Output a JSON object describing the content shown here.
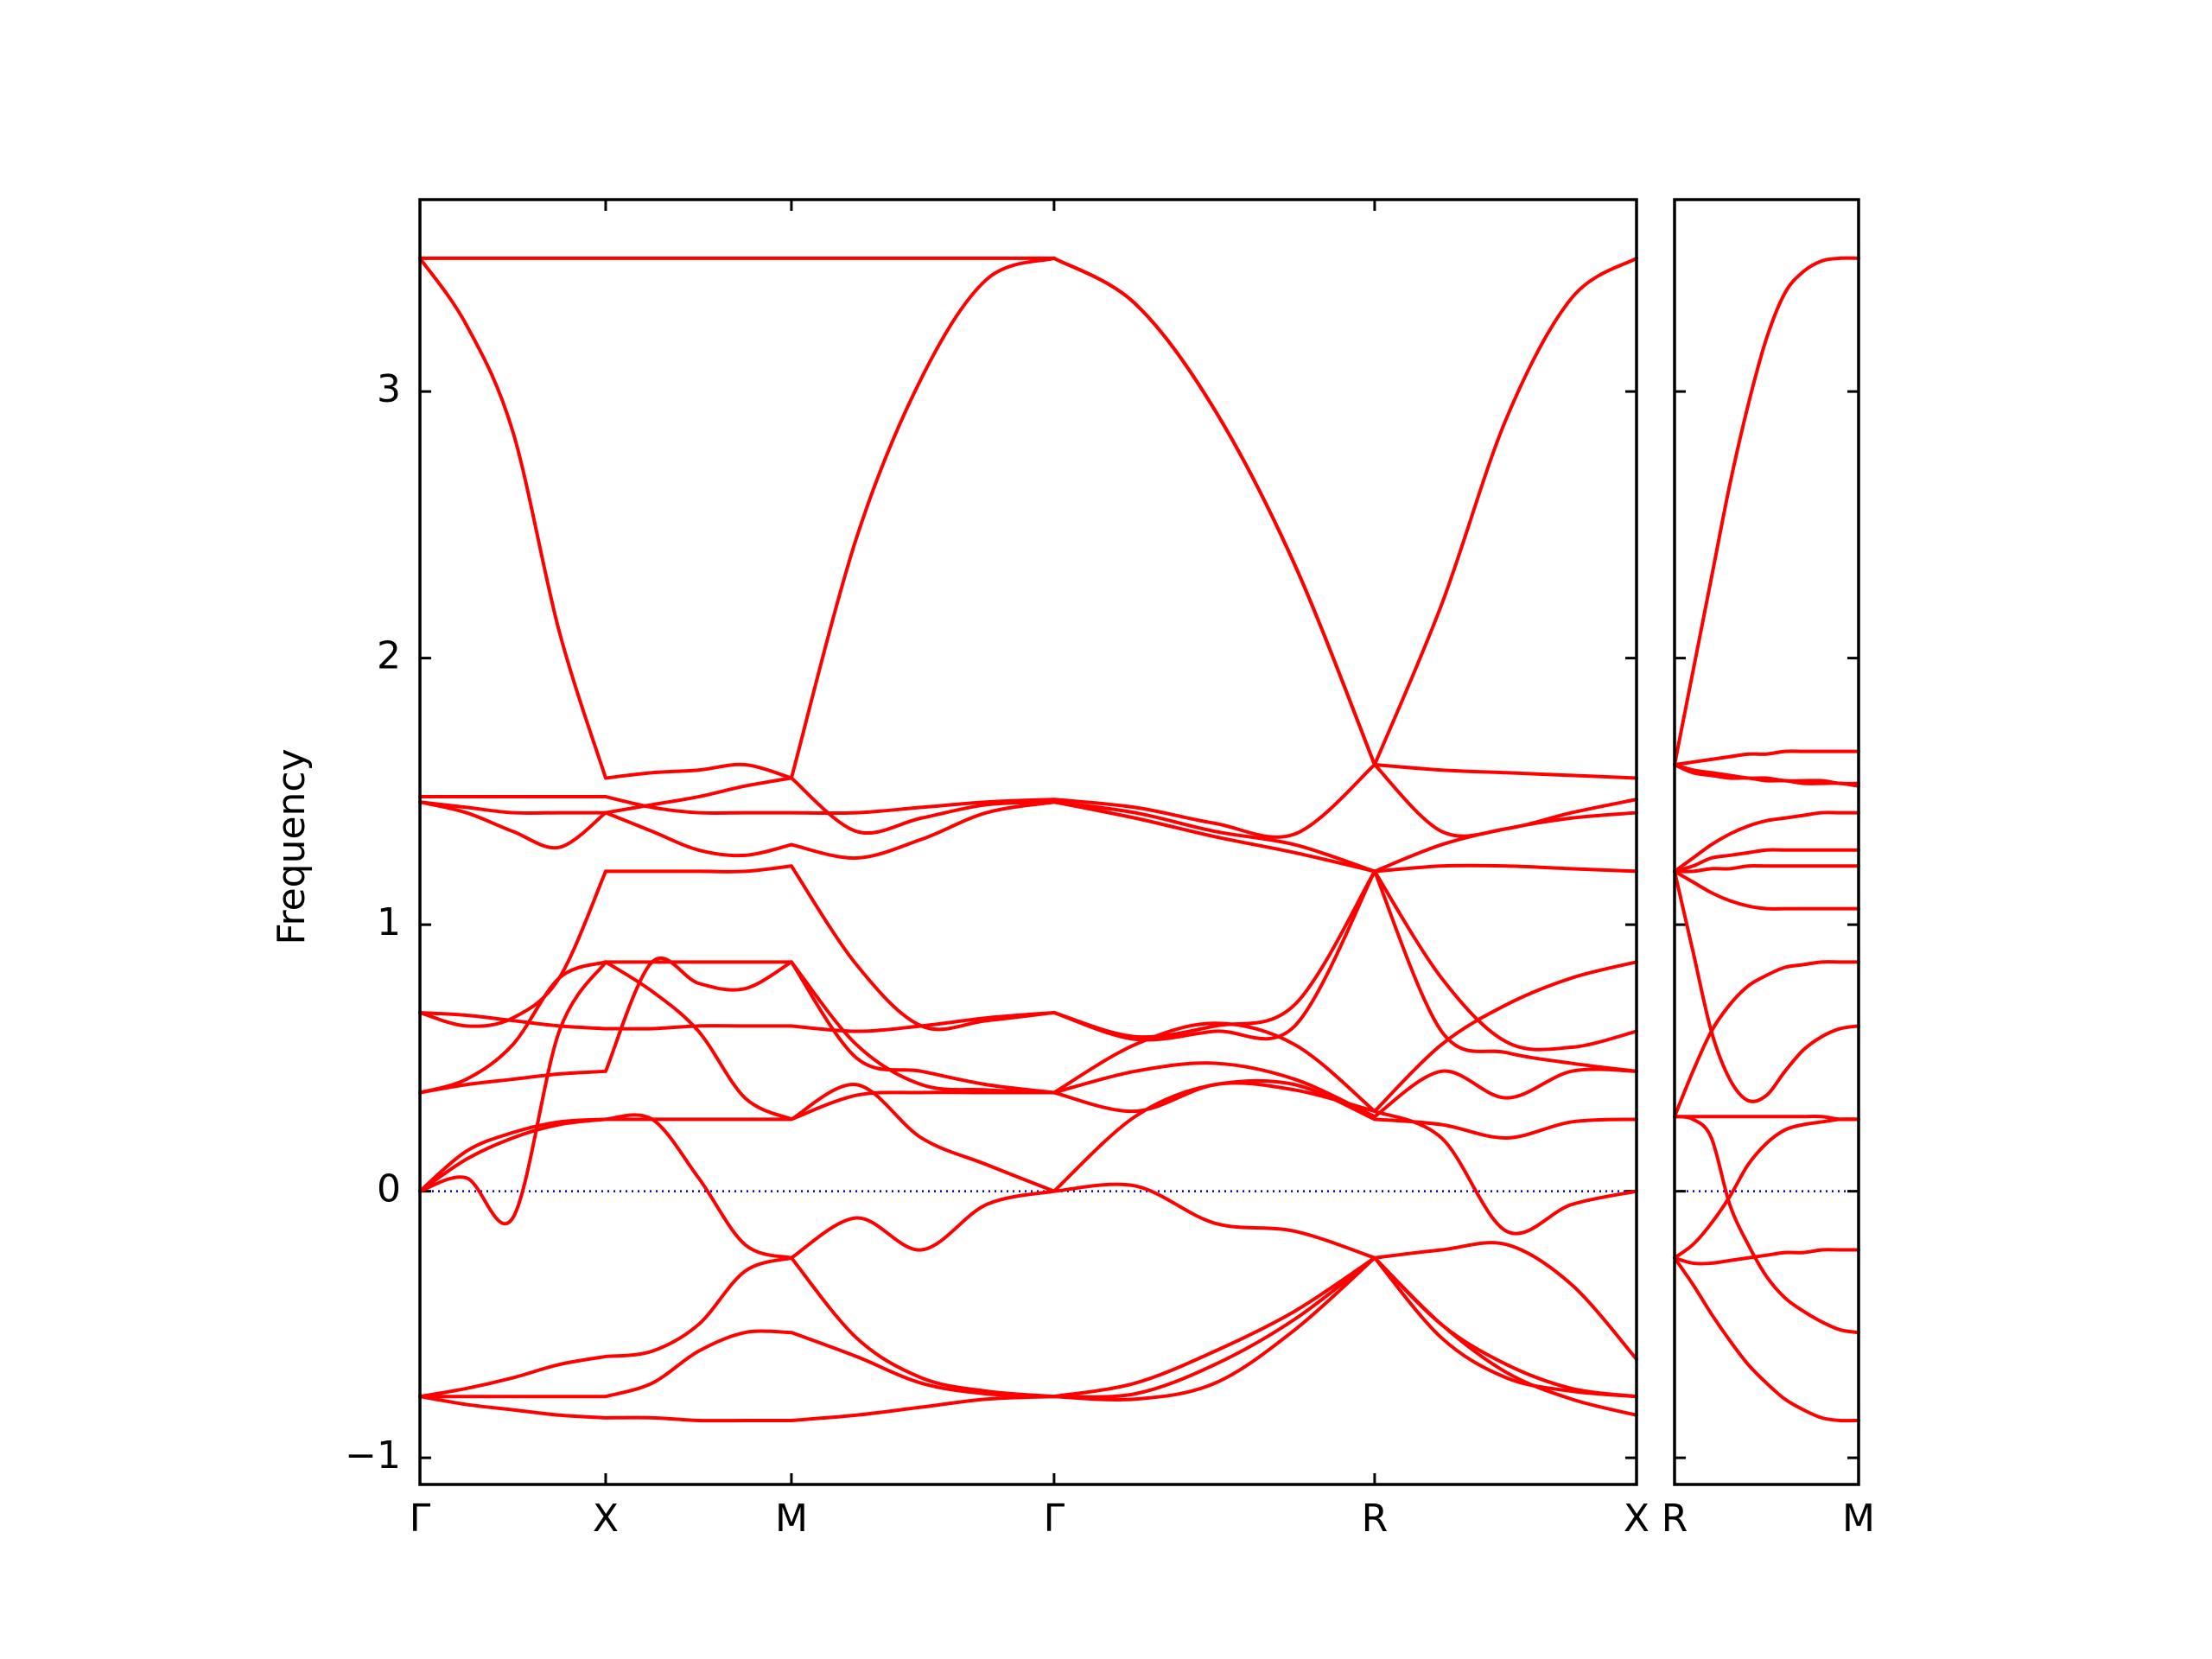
{
  "chart_data": [
    {
      "type": "line",
      "ylabel": "Frequency",
      "color": "#ff0000",
      "xlim": [
        0,
        6.55
      ],
      "ylim": [
        -1.1,
        3.72
      ],
      "xticks": [
        {
          "value": 0,
          "label": "Γ"
        },
        {
          "value": 1,
          "label": "X"
        },
        {
          "value": 2,
          "label": "M"
        },
        {
          "value": 3.414,
          "label": "Γ"
        },
        {
          "value": 5.14,
          "label": "R"
        },
        {
          "value": 6.55,
          "label": "X"
        }
      ],
      "yticks": [
        {
          "value": -1,
          "label": "−1"
        },
        0,
        1,
        2,
        3
      ],
      "hline": 0,
      "hline_color": "#0000cc",
      "x": [
        0,
        0.25,
        0.5,
        0.75,
        1,
        1.25,
        1.5,
        1.75,
        2,
        2.35,
        2.7,
        3.05,
        3.414,
        3.85,
        4.28,
        4.71,
        5.14,
        5.5,
        5.85,
        6.2,
        6.55
      ],
      "series": [
        {
          "values": [
            3.5,
            3.5,
            3.5,
            3.5,
            3.5,
            3.5,
            3.5,
            3.5,
            3.5,
            3.5,
            3.5,
            3.5,
            3.5,
            3.33,
            2.93,
            2.35,
            1.6,
            2.2,
            2.9,
            3.35,
            3.5
          ]
        },
        {
          "values": [
            3.5,
            3.25,
            2.85,
            2.1,
            1.55,
            1.57,
            1.58,
            1.6,
            1.55,
            2.45,
            3.05,
            3.42,
            3.5,
            3.33,
            2.93,
            2.35,
            1.6,
            1.35,
            1.36,
            1.42,
            1.47
          ]
        },
        {
          "values": [
            1.48,
            1.48,
            1.48,
            1.48,
            1.48,
            1.44,
            1.42,
            1.42,
            1.42,
            1.42,
            1.44,
            1.46,
            1.47,
            1.44,
            1.38,
            1.34,
            1.6,
            1.58,
            1.57,
            1.56,
            1.55
          ]
        },
        {
          "values": [
            1.46,
            1.44,
            1.42,
            1.42,
            1.42,
            1.45,
            1.48,
            1.52,
            1.55,
            1.35,
            1.4,
            1.45,
            1.46,
            1.42,
            1.35,
            1.3,
            1.2,
            1.3,
            1.36,
            1.4,
            1.42
          ]
        },
        {
          "values": [
            1.46,
            1.42,
            1.35,
            1.29,
            1.42,
            1.35,
            1.28,
            1.26,
            1.3,
            1.25,
            1.32,
            1.42,
            1.46,
            1.4,
            1.33,
            1.27,
            1.2,
            1.22,
            1.22,
            1.21,
            1.2
          ]
        },
        {
          "values": [
            0.67,
            0.62,
            0.65,
            0.8,
            1.2,
            1.2,
            1.2,
            1.2,
            1.22,
            0.85,
            0.62,
            0.64,
            0.67,
            0.58,
            0.62,
            0.7,
            1.2,
            0.8,
            0.56,
            0.54,
            0.6
          ]
        },
        {
          "values": [
            0.67,
            0.66,
            0.64,
            0.62,
            0.61,
            0.61,
            0.62,
            0.62,
            0.62,
            0.6,
            0.62,
            0.65,
            0.67,
            0.57,
            0.6,
            0.62,
            1.2,
            0.6,
            0.52,
            0.48,
            0.45
          ]
        },
        {
          "values": [
            0.37,
            0.42,
            0.55,
            0.8,
            0.86,
            0.86,
            0.86,
            0.86,
            0.86,
            0.55,
            0.4,
            0.38,
            0.37,
            0.55,
            0.63,
            0.55,
            0.3,
            0.55,
            0.7,
            0.8,
            0.86
          ]
        },
        {
          "values": [
            0.37,
            0.4,
            0.42,
            0.44,
            0.45,
            0.86,
            0.78,
            0.76,
            0.86,
            0.5,
            0.45,
            0.4,
            0.37,
            0.45,
            0.48,
            0.42,
            0.28,
            0.45,
            0.35,
            0.45,
            0.45
          ]
        },
        {
          "values": [
            0,
            0.15,
            0.22,
            0.26,
            0.27,
            0.27,
            0.27,
            0.27,
            0.27,
            0.36,
            0.37,
            0.37,
            0.37,
            0.3,
            0.4,
            0.4,
            0.27,
            0.25,
            0.2,
            0.26,
            0.27
          ]
        },
        {
          "values": [
            0,
            0.05,
            -0.1,
            0.6,
            0.86,
            0.75,
            0.6,
            0.35,
            0.27,
            0.4,
            0.2,
            0.1,
            0,
            0.28,
            0.4,
            0.38,
            0.3,
            0.2,
            -0.15,
            -0.05,
            0
          ]
        },
        {
          "values": [
            0,
            0.12,
            0.2,
            0.25,
            0.27,
            0.27,
            0.05,
            -0.2,
            -0.25,
            -0.1,
            -0.22,
            -0.05,
            0,
            0.02,
            -0.12,
            -0.15,
            -0.25,
            -0.22,
            -0.2,
            -0.35,
            -0.63
          ]
        },
        {
          "values": [
            -0.77,
            -0.74,
            -0.7,
            -0.65,
            -0.62,
            -0.6,
            -0.5,
            -0.3,
            -0.25,
            -0.55,
            -0.7,
            -0.75,
            -0.77,
            -0.72,
            -0.6,
            -0.45,
            -0.25,
            -0.5,
            -0.65,
            -0.74,
            -0.77
          ]
        },
        {
          "values": [
            -0.77,
            -0.77,
            -0.77,
            -0.77,
            -0.77,
            -0.72,
            -0.6,
            -0.53,
            -0.53,
            -0.62,
            -0.72,
            -0.76,
            -0.77,
            -0.76,
            -0.65,
            -0.48,
            -0.25,
            -0.55,
            -0.7,
            -0.75,
            -0.77
          ]
        },
        {
          "values": [
            -0.77,
            -0.8,
            -0.82,
            -0.84,
            -0.85,
            -0.85,
            -0.86,
            -0.86,
            -0.86,
            -0.84,
            -0.81,
            -0.78,
            -0.77,
            -0.78,
            -0.72,
            -0.52,
            -0.25,
            -0.5,
            -0.68,
            -0.78,
            -0.84
          ]
        }
      ]
    },
    {
      "type": "line",
      "color": "#ff0000",
      "sharey": true,
      "xlim": [
        0,
        1
      ],
      "ylim": [
        -1.1,
        3.72
      ],
      "xticks": [
        {
          "value": 0,
          "label": "R"
        },
        {
          "value": 1,
          "label": "M"
        }
      ],
      "hline": 0,
      "hline_color": "#0000cc",
      "x": [
        0,
        0.1,
        0.2,
        0.3,
        0.4,
        0.5,
        0.6,
        0.7,
        0.8,
        0.9,
        1
      ],
      "series": [
        {
          "values": [
            1.6,
            1.95,
            2.3,
            2.65,
            2.95,
            3.2,
            3.37,
            3.45,
            3.49,
            3.5,
            3.5
          ]
        },
        {
          "values": [
            1.6,
            1.61,
            1.62,
            1.63,
            1.64,
            1.64,
            1.65,
            1.65,
            1.65,
            1.65,
            1.65
          ]
        },
        {
          "values": [
            1.6,
            1.58,
            1.57,
            1.56,
            1.55,
            1.55,
            1.54,
            1.54,
            1.54,
            1.53,
            1.53
          ]
        },
        {
          "values": [
            1.6,
            1.57,
            1.56,
            1.55,
            1.55,
            1.54,
            1.54,
            1.53,
            1.53,
            1.53,
            1.52
          ]
        },
        {
          "values": [
            1.2,
            1.25,
            1.3,
            1.34,
            1.37,
            1.39,
            1.4,
            1.41,
            1.42,
            1.42,
            1.42
          ]
        },
        {
          "values": [
            1.2,
            1.22,
            1.25,
            1.26,
            1.27,
            1.28,
            1.28,
            1.28,
            1.28,
            1.28,
            1.28
          ]
        },
        {
          "values": [
            1.2,
            1.2,
            1.21,
            1.21,
            1.22,
            1.22,
            1.22,
            1.22,
            1.22,
            1.22,
            1.22
          ]
        },
        {
          "values": [
            1.2,
            1.16,
            1.12,
            1.09,
            1.07,
            1.06,
            1.06,
            1.06,
            1.06,
            1.06,
            1.06
          ]
        },
        {
          "values": [
            1.2,
            0.9,
            0.6,
            0.42,
            0.34,
            0.36,
            0.45,
            0.53,
            0.58,
            0.61,
            0.62
          ]
        },
        {
          "values": [
            0.28,
            0.45,
            0.6,
            0.7,
            0.77,
            0.81,
            0.84,
            0.85,
            0.86,
            0.86,
            0.86
          ]
        },
        {
          "values": [
            0.28,
            0.28,
            0.28,
            0.28,
            0.28,
            0.28,
            0.28,
            0.28,
            0.28,
            0.27,
            0.27
          ]
        },
        {
          "values": [
            0.28,
            0.27,
            0.2,
            -0.05,
            -0.2,
            -0.32,
            -0.4,
            -0.45,
            -0.49,
            -0.52,
            -0.53
          ]
        },
        {
          "values": [
            -0.25,
            -0.2,
            -0.12,
            -0.02,
            0.1,
            0.18,
            0.23,
            0.25,
            0.26,
            0.27,
            0.27
          ]
        },
        {
          "values": [
            -0.25,
            -0.27,
            -0.27,
            -0.26,
            -0.25,
            -0.24,
            -0.23,
            -0.23,
            -0.22,
            -0.22,
            -0.22
          ]
        },
        {
          "values": [
            -0.25,
            -0.35,
            -0.46,
            -0.56,
            -0.65,
            -0.72,
            -0.78,
            -0.82,
            -0.85,
            -0.86,
            -0.86
          ]
        }
      ]
    }
  ]
}
